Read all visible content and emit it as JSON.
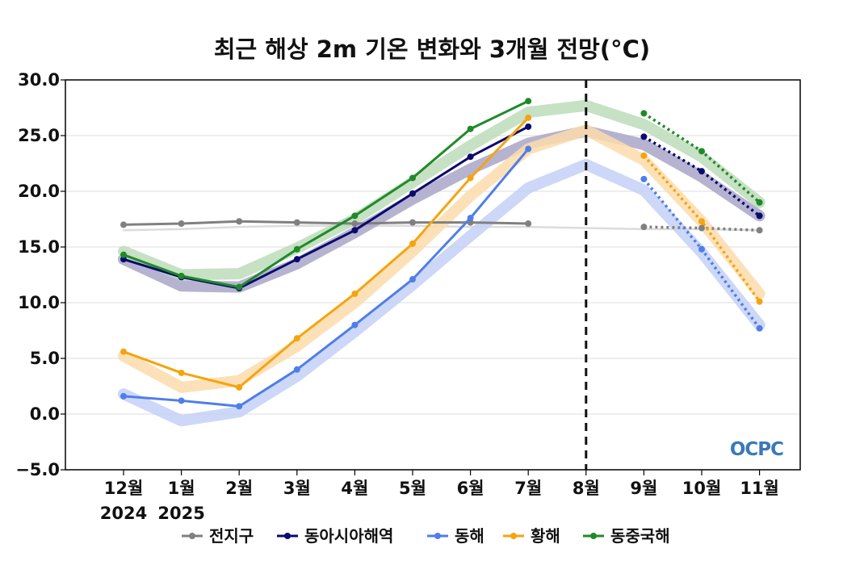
{
  "chart_data": {
    "type": "line",
    "title": "최근 해상 2m 기온 변화와 3개월 전망(°C)",
    "ylim": [
      -5,
      30
    ],
    "yticks": [
      30.0,
      25.0,
      20.0,
      15.0,
      10.0,
      5.0,
      0.0,
      -5.0
    ],
    "ytick_labels": [
      "30.0",
      "25.0",
      "20.0",
      "15.0",
      "10.0",
      "5.0",
      "0.0",
      "−5.0"
    ],
    "categories": [
      "12월",
      "1월",
      "2월",
      "3월",
      "4월",
      "5월",
      "6월",
      "7월",
      "8월",
      "9월",
      "10월",
      "11월"
    ],
    "year_labels": [
      {
        "category_index": 0,
        "text": "2024"
      },
      {
        "category_index": 1,
        "text": "2025"
      }
    ],
    "forecast_divider_category": "8월",
    "grid": "horizontal",
    "legend_position": "bottom",
    "logo_text": "OCPC",
    "series": [
      {
        "name": "전지구",
        "color": "#808080",
        "band_color": "#d8d8d8",
        "observed": [
          17.0,
          17.1,
          17.3,
          17.2,
          17.1,
          17.2,
          17.2,
          17.1
        ],
        "climatology": [
          16.5,
          16.6,
          16.8,
          16.9,
          16.9,
          16.9,
          16.8,
          16.8,
          16.7,
          16.6,
          16.6,
          16.5
        ],
        "forecast_x": [
          "9월",
          "10월",
          "11월"
        ],
        "forecast": [
          16.8,
          16.7,
          16.5
        ]
      },
      {
        "name": "동아시아해역",
        "color": "#0a0a6e",
        "band_color": "#a9a6c8",
        "observed": [
          13.9,
          12.3,
          11.3,
          13.9,
          16.5,
          19.8,
          23.1,
          25.8
        ],
        "climatology": [
          13.9,
          11.5,
          11.4,
          13.5,
          16.3,
          19.3,
          22.0,
          24.3,
          25.4,
          24.2,
          21.3,
          17.8
        ],
        "forecast_x": [
          "9월",
          "10월",
          "11월"
        ],
        "forecast": [
          24.9,
          21.8,
          17.8
        ]
      },
      {
        "name": "동해",
        "color": "#4f7ee8",
        "band_color": "#c4d0f6",
        "observed": [
          1.6,
          1.2,
          0.7,
          4.0,
          8.0,
          12.1,
          17.6,
          23.8
        ],
        "climatology": [
          1.8,
          -0.6,
          0.2,
          3.4,
          7.4,
          11.6,
          16.0,
          20.3,
          22.4,
          20.1,
          14.5,
          8.0
        ],
        "forecast_x": [
          "9월",
          "10월",
          "11월"
        ],
        "forecast": [
          21.1,
          14.8,
          7.7
        ]
      },
      {
        "name": "황해",
        "color": "#f5a40f",
        "band_color": "#fbdcab",
        "observed": [
          5.6,
          3.7,
          2.4,
          6.8,
          10.8,
          15.3,
          21.2,
          26.6
        ],
        "climatology": [
          5.2,
          2.4,
          3.0,
          6.1,
          10.0,
          14.6,
          19.6,
          23.8,
          25.5,
          22.8,
          17.3,
          10.8
        ],
        "forecast_x": [
          "9월",
          "10월",
          "11월"
        ],
        "forecast": [
          23.2,
          17.3,
          10.1
        ]
      },
      {
        "name": "동중국해",
        "color": "#1f8a28",
        "band_color": "#bcdcba",
        "observed": [
          14.3,
          12.4,
          11.4,
          14.8,
          17.8,
          21.2,
          25.6,
          28.1
        ],
        "climatology": [
          14.6,
          12.5,
          12.6,
          14.9,
          17.5,
          20.8,
          24.1,
          27.1,
          27.7,
          26.0,
          23.1,
          19.0
        ],
        "forecast_x": [
          "9월",
          "10월",
          "11월"
        ],
        "forecast": [
          27.0,
          23.6,
          19.0
        ]
      }
    ]
  }
}
